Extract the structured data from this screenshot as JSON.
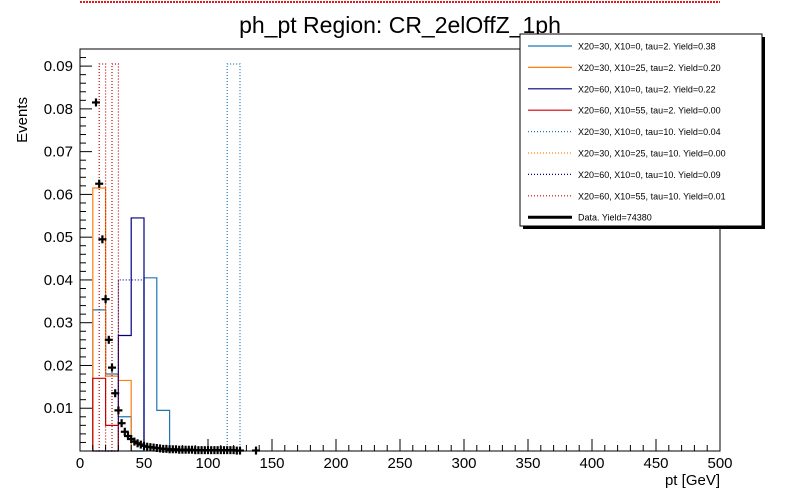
{
  "chart_data": {
    "type": "histogram",
    "title": "ph_pt Region: CR_2elOffZ_1ph",
    "xlabel": "pt [GeV]",
    "ylabel": "Events",
    "xlim": [
      0,
      500
    ],
    "ylim": [
      0,
      0.094
    ],
    "x_ticks": [
      0,
      50,
      100,
      150,
      200,
      250,
      300,
      350,
      400,
      450,
      500
    ],
    "y_ticks": [
      0.01,
      0.02,
      0.03,
      0.04,
      0.05,
      0.06,
      0.07,
      0.08,
      0.09
    ],
    "grid": false,
    "legend_position": "top-right",
    "series": [
      {
        "name": "X20=30, X10=0, tau=2. Yield=0.38",
        "style": "solid",
        "color": "#1f77b4",
        "bins": [
          [
            10,
            20,
            0.033
          ],
          [
            20,
            30,
            0.018
          ],
          [
            30,
            40,
            0.008
          ],
          [
            40,
            50,
            0.0
          ],
          [
            50,
            60,
            0.0405
          ],
          [
            60,
            70,
            0.0095
          ]
        ]
      },
      {
        "name": "X20=30, X10=25, tau=2. Yield=0.20",
        "style": "solid",
        "color": "#ff7f0e",
        "bins": [
          [
            10,
            20,
            0.0615
          ],
          [
            20,
            30,
            0.0175
          ],
          [
            30,
            40,
            0.0165
          ]
        ]
      },
      {
        "name": "X20=60, X10=0, tau=2. Yield=0.22",
        "style": "solid",
        "color": "#000080",
        "bins": [
          [
            10,
            20,
            0.0
          ],
          [
            20,
            30,
            0.0
          ],
          [
            30,
            40,
            0.027
          ],
          [
            40,
            50,
            0.0545
          ]
        ]
      },
      {
        "name": "X20=60, X10=55, tau=2. Yield=0.00",
        "style": "solid",
        "color": "#cc0000",
        "bins": [
          [
            10,
            20,
            0.017
          ],
          [
            20,
            30,
            0.006
          ]
        ]
      },
      {
        "name": "X20=30, X10=0, tau=10. Yield=0.04",
        "style": "dotted",
        "color": "#1f77b4",
        "bins": [
          [
            115,
            125,
            0.0905
          ]
        ]
      },
      {
        "name": "X20=30, X10=25, tau=10. Yield=0.00",
        "style": "dotted",
        "color": "#ff7f0e",
        "bins": []
      },
      {
        "name": "X20=60, X10=0, tau=10. Yield=0.09",
        "style": "dotted",
        "color": "#000080",
        "bins": [
          [
            10,
            20,
            0.0
          ],
          [
            20,
            30,
            0.0
          ],
          [
            30,
            40,
            0.04
          ],
          [
            40,
            50,
            0.04
          ]
        ]
      },
      {
        "name": "X20=60, X10=55, tau=10. Yield=0.01",
        "style": "dotted",
        "color": "#cc0000",
        "bins": [
          [
            15,
            20,
            0.0905
          ],
          [
            20,
            30,
            0.0
          ],
          [
            25,
            30,
            0.0905
          ]
        ]
      }
    ],
    "data_series": {
      "name": "Data. Yield=74380",
      "x": [
        12.5,
        15,
        17.5,
        20,
        22.5,
        25,
        27.5,
        30,
        32.5,
        35,
        37.5,
        40,
        42.5,
        45,
        47.5,
        50,
        52.5,
        55,
        57.5,
        60,
        62.5,
        65,
        67.5,
        70,
        72.5,
        75,
        77.5,
        80,
        82.5,
        85,
        87.5,
        90,
        92.5,
        95,
        97.5,
        100,
        102.5,
        105,
        107.5,
        110,
        112.5,
        115,
        117.5,
        120,
        122.5,
        125,
        137.5
      ],
      "y": [
        0.0815,
        0.0625,
        0.0495,
        0.0355,
        0.026,
        0.0195,
        0.0135,
        0.0095,
        0.0065,
        0.0045,
        0.0035,
        0.0028,
        0.0022,
        0.0018,
        0.0015,
        0.0012,
        0.001,
        0.0009,
        0.0008,
        0.0007,
        0.0006,
        0.0005,
        0.0005,
        0.0004,
        0.0004,
        0.0004,
        0.0003,
        0.0003,
        0.0003,
        0.0003,
        0.0003,
        0.0002,
        0.0002,
        0.0002,
        0.0002,
        0.0002,
        0.0002,
        0.0002,
        0.0002,
        0.0002,
        0.0002,
        0.0002,
        0.0002,
        0.0002,
        0.0001,
        0.0001,
        0.0001
      ]
    }
  }
}
